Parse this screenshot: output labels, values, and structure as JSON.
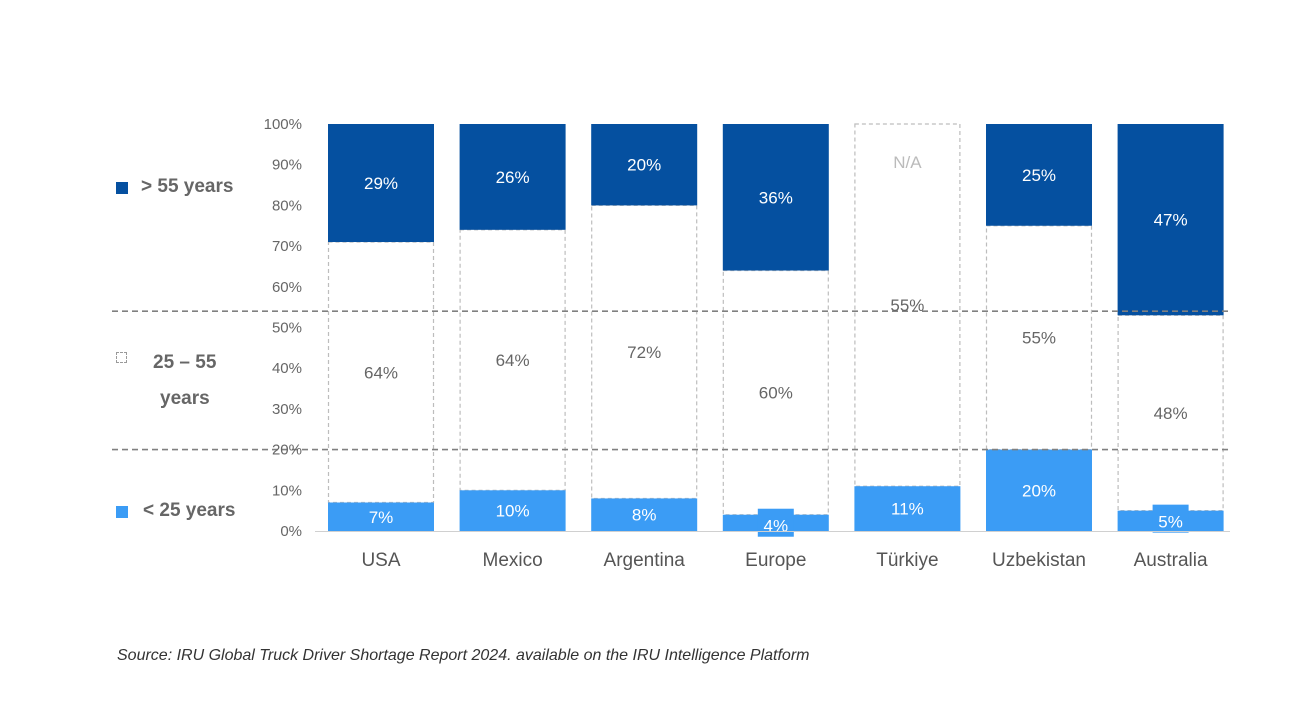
{
  "chart_data": {
    "type": "bar",
    "stacked": true,
    "categories": [
      "USA",
      "Mexico",
      "Argentina",
      "Europe",
      "Türkiye",
      "Uzbekistan",
      "Australia"
    ],
    "series": [
      {
        "name": "< 25 years",
        "color": "#3b9cf5",
        "values": [
          7,
          10,
          8,
          4,
          11,
          20,
          5
        ],
        "labels": [
          "7%",
          "10%",
          "8%",
          "4%",
          "11%",
          "20%",
          "5%"
        ]
      },
      {
        "name": "25 – 55 years",
        "color": "#ffffff",
        "values": [
          64,
          64,
          72,
          60,
          55,
          55,
          48
        ],
        "labels": [
          "64%",
          "64%",
          "72%",
          "60%",
          "55%",
          "55%",
          "48%"
        ]
      },
      {
        "name": "> 55 years",
        "color": "#0550a0",
        "values": [
          29,
          26,
          20,
          36,
          null,
          25,
          47
        ],
        "labels": [
          "29%",
          "26%",
          "20%",
          "36%",
          "N/A",
          "25%",
          "47%"
        ]
      }
    ],
    "yticks": [
      "0%",
      "10%",
      "20%",
      "30%",
      "40%",
      "50%",
      "60%",
      "70%",
      "80%",
      "90%",
      "100%"
    ],
    "ylim": [
      0,
      100
    ],
    "reference_lines": [
      20,
      54
    ]
  },
  "legend": {
    "over55": "> 55 years",
    "mid_line1": "25 – 55",
    "mid_line2": "years",
    "under25": "< 25 years"
  },
  "source": "Source: IRU Global Truck Driver Shortage Report 2024. available on the IRU Intelligence Platform"
}
